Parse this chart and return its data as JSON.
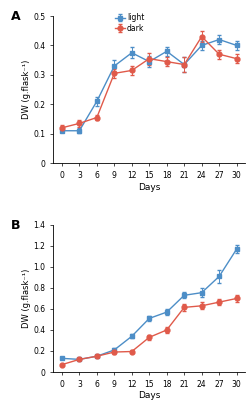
{
  "days": [
    0,
    3,
    6,
    9,
    12,
    15,
    18,
    21,
    24,
    27,
    30
  ],
  "panel_A": {
    "light_mean": [
      0.11,
      0.11,
      0.21,
      0.33,
      0.375,
      0.345,
      0.38,
      0.335,
      0.4,
      0.42,
      0.4
    ],
    "light_err": [
      0.005,
      0.008,
      0.015,
      0.02,
      0.018,
      0.02,
      0.015,
      0.025,
      0.015,
      0.015,
      0.015
    ],
    "dark_mean": [
      0.12,
      0.135,
      0.155,
      0.305,
      0.315,
      0.355,
      0.345,
      0.335,
      0.43,
      0.37,
      0.355
    ],
    "dark_err": [
      0.008,
      0.012,
      0.01,
      0.015,
      0.015,
      0.02,
      0.015,
      0.025,
      0.02,
      0.015,
      0.015
    ],
    "ylabel": "DW (g.flask⁻¹)",
    "ylim": [
      0,
      0.5
    ],
    "yticks": [
      0,
      0.1,
      0.2,
      0.3,
      0.4,
      0.5
    ],
    "label": "A"
  },
  "panel_B": {
    "light_mean": [
      0.13,
      0.12,
      0.15,
      0.21,
      0.34,
      0.51,
      0.57,
      0.73,
      0.755,
      0.91,
      1.17
    ],
    "light_err": [
      0.01,
      0.01,
      0.01,
      0.015,
      0.02,
      0.025,
      0.03,
      0.03,
      0.04,
      0.06,
      0.04
    ],
    "dark_mean": [
      0.07,
      0.12,
      0.15,
      0.19,
      0.195,
      0.33,
      0.4,
      0.615,
      0.63,
      0.665,
      0.7
    ],
    "dark_err": [
      0.008,
      0.01,
      0.01,
      0.015,
      0.015,
      0.025,
      0.03,
      0.03,
      0.035,
      0.03,
      0.03
    ],
    "ylabel": "DW (g.flask⁻¹)",
    "ylim": [
      0,
      1.4
    ],
    "yticks": [
      0,
      0.2,
      0.4,
      0.6,
      0.8,
      1.0,
      1.2,
      1.4
    ],
    "label": "B"
  },
  "light_color": "#4d8ec7",
  "dark_color": "#e05a4a",
  "xlabel": "Days",
  "markersize": 3.5,
  "linewidth": 1.0,
  "capsize": 1.5,
  "elinewidth": 0.7
}
